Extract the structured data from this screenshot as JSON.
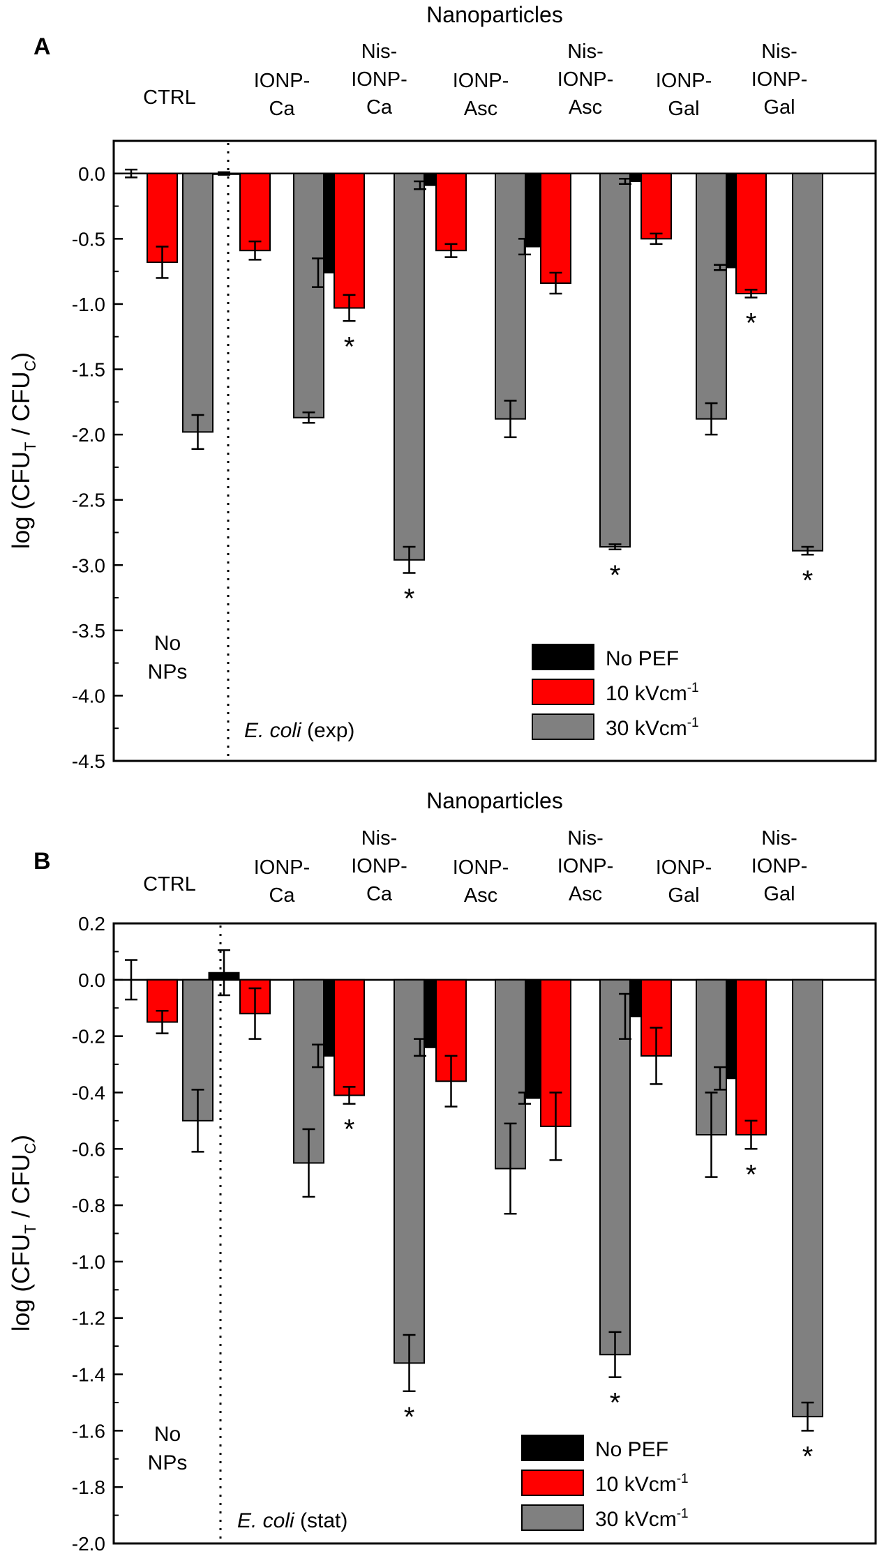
{
  "colors": {
    "no_pef": "#000000",
    "kv10": "#ff0000",
    "kv30": "#808080",
    "axis": "#000000",
    "background": "#ffffff"
  },
  "chart_data": [
    {
      "panel": "A",
      "type": "bar",
      "title": "Nanoparticles",
      "ylabel": {
        "prefix": "log (CFU",
        "sub1": "T",
        "mid": " / CFU",
        "sub2": "C",
        "suffix": ")"
      },
      "ylim": [
        -4.5,
        0.25
      ],
      "yticks": [
        0.0,
        -0.5,
        -1.0,
        -1.5,
        -2.0,
        -2.5,
        -3.0,
        -3.5,
        -4.0,
        -4.5
      ],
      "ytick_labels": [
        "0.0",
        "-0.5",
        "-1.0",
        "-1.5",
        "-2.0",
        "-2.5",
        "-3.0",
        "-3.5",
        "-4.0",
        "-4.5"
      ],
      "categories": [
        [
          "CTRL"
        ],
        [
          "IONP-",
          "Ca"
        ],
        [
          "Nis-",
          "IONP-",
          "Ca"
        ],
        [
          "IONP-",
          "Asc"
        ],
        [
          "Nis-",
          "IONP-",
          "Asc"
        ],
        [
          "IONP-",
          "Gal"
        ],
        [
          "Nis-",
          "IONP-",
          "Gal"
        ]
      ],
      "series": [
        {
          "name": "No PEF",
          "values": [
            0.0,
            0.0,
            -0.76,
            -0.09,
            -0.56,
            -0.06,
            -0.72
          ],
          "errors": [
            0.03,
            0.01,
            0.11,
            0.03,
            0.06,
            0.02,
            0.02
          ]
        },
        {
          "name": "10 kVcm",
          "values": [
            -0.68,
            -0.59,
            -1.03,
            -0.59,
            -0.84,
            -0.5,
            -0.92
          ],
          "errors": [
            0.12,
            0.07,
            0.1,
            0.05,
            0.08,
            0.04,
            0.03
          ]
        },
        {
          "name": "30 kVcm",
          "values": [
            -1.98,
            -1.87,
            -2.96,
            -1.88,
            -2.86,
            -1.88,
            -2.89
          ],
          "errors": [
            0.13,
            0.04,
            0.1,
            0.14,
            0.02,
            0.12,
            0.03
          ]
        }
      ],
      "significance": [
        {
          "category": 2,
          "series": 1,
          "label": "*"
        },
        {
          "category": 2,
          "series": 2,
          "label": "*"
        },
        {
          "category": 4,
          "series": 2,
          "label": "*"
        },
        {
          "category": 6,
          "series": 1,
          "label": "*"
        },
        {
          "category": 6,
          "series": 2,
          "label": "*"
        }
      ],
      "annotations": {
        "no_nps": [
          "No",
          "NPs"
        ],
        "strain_italic": "E. coli",
        "strain_phase": " (exp)"
      },
      "legend": {
        "items": [
          "No PEF",
          "10 kVcm",
          "30 kVcm"
        ],
        "superscript": "-1",
        "position": "bottom-right"
      }
    },
    {
      "panel": "B",
      "type": "bar",
      "title": "Nanoparticles",
      "ylabel": {
        "prefix": "log (CFU",
        "sub1": "T",
        "mid": " / CFU",
        "sub2": "C",
        "suffix": ")"
      },
      "ylim": [
        -2.0,
        0.2
      ],
      "yticks": [
        0.2,
        0.0,
        -0.2,
        -0.4,
        -0.6,
        -0.8,
        -1.0,
        -1.2,
        -1.4,
        -1.6,
        -1.8,
        -2.0
      ],
      "ytick_labels": [
        "0.2",
        "0.0",
        "-0.2",
        "-0.4",
        "-0.6",
        "-0.8",
        "-1.0",
        "-1.2",
        "-1.4",
        "-1.6",
        "-1.8",
        "-2.0"
      ],
      "categories": [
        [
          "CTRL"
        ],
        [
          "IONP-",
          "Ca"
        ],
        [
          "Nis-",
          "IONP-",
          "Ca"
        ],
        [
          "IONP-",
          "Asc"
        ],
        [
          "Nis-",
          "IONP-",
          "Asc"
        ],
        [
          "IONP-",
          "Gal"
        ],
        [
          "Nis-",
          "IONP-",
          "Gal"
        ]
      ],
      "series": [
        {
          "name": "No PEF",
          "values": [
            0.0,
            0.025,
            -0.27,
            -0.24,
            -0.42,
            -0.13,
            -0.35
          ],
          "errors": [
            0.07,
            0.08,
            0.04,
            0.03,
            0.02,
            0.08,
            0.04
          ]
        },
        {
          "name": "10 kVcm",
          "values": [
            -0.15,
            -0.12,
            -0.41,
            -0.36,
            -0.52,
            -0.27,
            -0.55
          ],
          "errors": [
            0.04,
            0.09,
            0.03,
            0.09,
            0.12,
            0.1,
            0.05
          ]
        },
        {
          "name": "30 kVcm",
          "values": [
            -0.5,
            -0.65,
            -1.36,
            -0.67,
            -1.33,
            -0.55,
            -1.55
          ],
          "errors": [
            0.11,
            0.12,
            0.1,
            0.16,
            0.08,
            0.15,
            0.05
          ]
        }
      ],
      "significance": [
        {
          "category": 2,
          "series": 1,
          "label": "*"
        },
        {
          "category": 2,
          "series": 2,
          "label": "*"
        },
        {
          "category": 4,
          "series": 2,
          "label": "*"
        },
        {
          "category": 6,
          "series": 1,
          "label": "*"
        },
        {
          "category": 6,
          "series": 2,
          "label": "*"
        }
      ],
      "annotations": {
        "no_nps": [
          "No",
          "NPs"
        ],
        "strain_italic": "E. coli",
        "strain_phase": " (stat)"
      },
      "legend": {
        "items": [
          "No PEF",
          "10 kVcm",
          "30 kVcm"
        ],
        "superscript": "-1",
        "position": "bottom-right"
      }
    }
  ]
}
